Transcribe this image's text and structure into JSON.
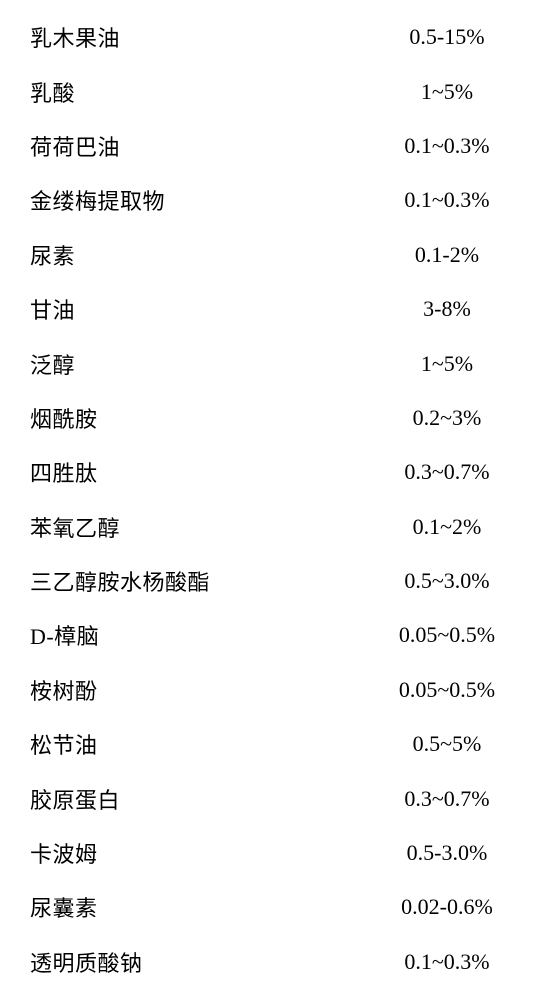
{
  "table": {
    "rows": [
      {
        "ingredient": "乳木果油",
        "percentage": "0.5-15%"
      },
      {
        "ingredient": "乳酸",
        "percentage": "1~5%"
      },
      {
        "ingredient": "荷荷巴油",
        "percentage": "0.1~0.3%"
      },
      {
        "ingredient": "金缕梅提取物",
        "percentage": "0.1~0.3%"
      },
      {
        "ingredient": "尿素",
        "percentage": "0.1-2%"
      },
      {
        "ingredient": "甘油",
        "percentage": "3-8%"
      },
      {
        "ingredient": "泛醇",
        "percentage": "1~5%"
      },
      {
        "ingredient": "烟酰胺",
        "percentage": "0.2~3%"
      },
      {
        "ingredient": "四胜肽",
        "percentage": "0.3~0.7%"
      },
      {
        "ingredient": "苯氧乙醇",
        "percentage": "0.1~2%"
      },
      {
        "ingredient": "三乙醇胺水杨酸酯",
        "percentage": "0.5~3.0%"
      },
      {
        "ingredient": "D-樟脑",
        "percentage": "0.05~0.5%"
      },
      {
        "ingredient": "桉树酚",
        "percentage": "0.05~0.5%"
      },
      {
        "ingredient": "松节油",
        "percentage": "0.5~5%"
      },
      {
        "ingredient": "胶原蛋白",
        "percentage": "0.3~0.7%"
      },
      {
        "ingredient": "卡波姆",
        "percentage": "0.5-3.0%"
      },
      {
        "ingredient": "尿囊素",
        "percentage": "0.02-0.6%"
      },
      {
        "ingredient": "透明质酸钠",
        "percentage": "0.1~0.3%"
      }
    ],
    "styling": {
      "background_color": "#ffffff",
      "text_color": "#000000",
      "font_size": 22,
      "font_family": "SimSun",
      "row_height": 54.4,
      "column_count": 2,
      "ingredient_align": "left",
      "percentage_align": "center"
    }
  }
}
